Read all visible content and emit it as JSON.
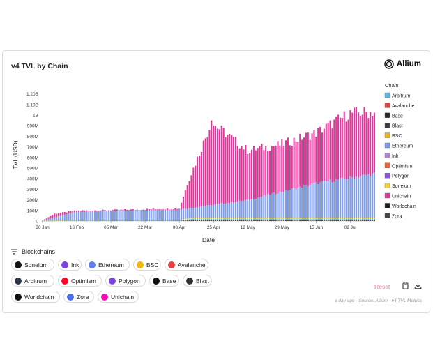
{
  "card": {
    "title": "v4 TVL by Chain",
    "brand": "Allium"
  },
  "chart_data": {
    "type": "bar",
    "stacked": true,
    "xlabel": "Date",
    "ylabel": "TVL (USD)",
    "ylim": [
      0,
      1250000000
    ],
    "yticks": [
      "0",
      "100M",
      "200M",
      "300M",
      "400M",
      "500M",
      "600M",
      "700M",
      "800M",
      "900M",
      "1B",
      "1.10B",
      "1.20B"
    ],
    "xticks": [
      "30 Jan",
      "16 Feb",
      "05 Mar",
      "22 Mar",
      "08 Apr",
      "25 Apr",
      "12 May",
      "29 May",
      "15 Jun",
      "02 Jul"
    ],
    "date_start": "2025-01-30",
    "date_end": "2025-07-14",
    "legend_title": "Chain",
    "legend_position": "right",
    "series": [
      {
        "name": "Arbitrum",
        "color": "#5fb8e8"
      },
      {
        "name": "Avalanche",
        "color": "#e0443f"
      },
      {
        "name": "Base",
        "color": "#2a2a2a"
      },
      {
        "name": "Blast",
        "color": "#3d3d3d"
      },
      {
        "name": "BSC",
        "color": "#f0b429"
      },
      {
        "name": "Ethereum",
        "color": "#7f9ce6"
      },
      {
        "name": "Ink",
        "color": "#b08ad8"
      },
      {
        "name": "Optimism",
        "color": "#e8663d"
      },
      {
        "name": "Polygon",
        "color": "#8a55d8"
      },
      {
        "name": "Soneium",
        "color": "#f2d53a"
      },
      {
        "name": "Unichain",
        "color": "#e0379a"
      },
      {
        "name": "Worldchain",
        "color": "#1c1c1c"
      },
      {
        "name": "Zora",
        "color": "#444444"
      }
    ],
    "approx_totals_usd": [
      {
        "date": "2025-01-30",
        "total": 5000000
      },
      {
        "date": "2025-02-05",
        "total": 70000000
      },
      {
        "date": "2025-02-16",
        "total": 100000000
      },
      {
        "date": "2025-03-05",
        "total": 105000000
      },
      {
        "date": "2025-04-08",
        "total": 120000000
      },
      {
        "date": "2025-04-12",
        "total": 360000000
      },
      {
        "date": "2025-04-24",
        "total": 950000000
      },
      {
        "date": "2025-05-12",
        "total": 680000000
      },
      {
        "date": "2025-05-29",
        "total": 740000000
      },
      {
        "date": "2025-06-15",
        "total": 850000000
      },
      {
        "date": "2025-07-02",
        "total": 1040000000
      },
      {
        "date": "2025-07-14",
        "total": 1050000000
      }
    ],
    "approx_ethereum_usd": [
      {
        "date": "2025-01-30",
        "total": 5000000
      },
      {
        "date": "2025-02-16",
        "total": 90000000
      },
      {
        "date": "2025-04-08",
        "total": 110000000
      },
      {
        "date": "2025-05-12",
        "total": 200000000
      },
      {
        "date": "2025-06-15",
        "total": 360000000
      },
      {
        "date": "2025-07-14",
        "total": 450000000
      }
    ]
  },
  "filters": {
    "heading": "Blockchains",
    "chips": [
      {
        "label": "Soneium",
        "color": "#111111"
      },
      {
        "label": "Ink",
        "color": "#7b3fe4"
      },
      {
        "label": "Ethereum",
        "color": "#627eea"
      },
      {
        "label": "BSC",
        "color": "#f0b90b"
      },
      {
        "label": "Avalanche",
        "color": "#e84142"
      },
      {
        "label": "Arbitrum",
        "color": "#2d374b"
      },
      {
        "label": "Optimism",
        "color": "#ff0420"
      },
      {
        "label": "Polygon",
        "color": "#8247e5"
      },
      {
        "label": "Base",
        "color": "#111111"
      },
      {
        "label": "Blast",
        "color": "#333333"
      },
      {
        "label": "Worldchain",
        "color": "#111111"
      },
      {
        "label": "Zora",
        "color": "#4c6ee8"
      },
      {
        "label": "Unichain",
        "color": "#f50db4"
      }
    ]
  },
  "toolbar": {
    "reset_label": "Reset"
  },
  "footer": {
    "time": "a day ago",
    "separator": "-",
    "source": "Source: Allium - v4 TVL Metrics"
  }
}
